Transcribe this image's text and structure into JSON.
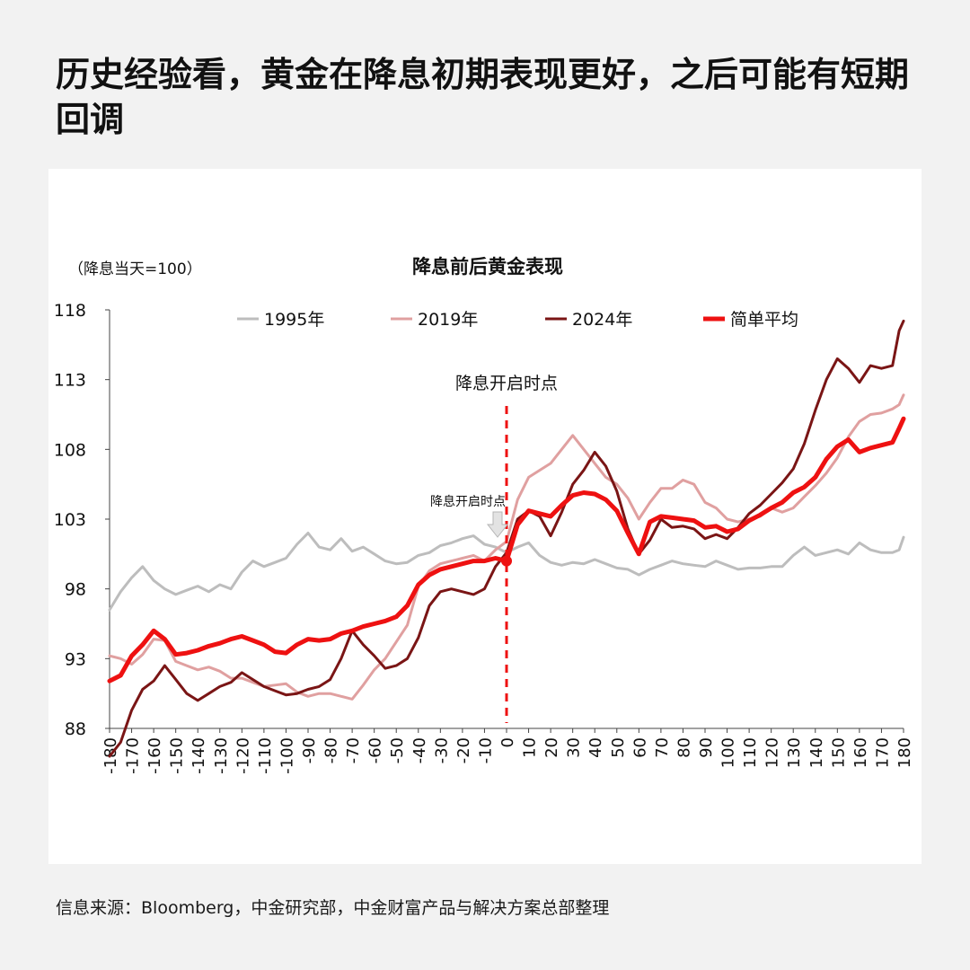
{
  "page": {
    "headline": "历史经验看，黄金在降息初期表现更好，之后可能有短期回调",
    "source": "信息来源：Bloomberg，中金研究部，中金财富产品与解决方案总部整理"
  },
  "chart_data": {
    "type": "line",
    "title": "降息前后黄金表现",
    "unit_note": "（降息当天=100）",
    "xlabel": "",
    "ylabel": "",
    "xlim": [
      -180,
      180
    ],
    "ylim": [
      88,
      118
    ],
    "x_ticks": [
      -180,
      -170,
      -160,
      -150,
      -140,
      -130,
      -120,
      -110,
      -100,
      -90,
      -80,
      -70,
      -60,
      -50,
      -40,
      -30,
      -20,
      -10,
      0,
      10,
      20,
      30,
      40,
      50,
      60,
      70,
      80,
      90,
      100,
      110,
      120,
      130,
      140,
      150,
      160,
      170,
      180
    ],
    "y_ticks": [
      88,
      93,
      98,
      103,
      108,
      113,
      118
    ],
    "grid": false,
    "legend_position": "top",
    "annotations": {
      "cut_line_label": "降息开启时点",
      "cut_arrow_label": "降息开启时点",
      "cut_x": 0,
      "cut_y": 100
    },
    "series": [
      {
        "name": "1995年",
        "color": "#bdbdbd",
        "width": 3,
        "x": [
          -180,
          -175,
          -170,
          -165,
          -160,
          -155,
          -150,
          -145,
          -140,
          -135,
          -130,
          -125,
          -120,
          -115,
          -110,
          -105,
          -100,
          -95,
          -90,
          -85,
          -80,
          -75,
          -70,
          -65,
          -60,
          -55,
          -50,
          -45,
          -40,
          -35,
          -30,
          -25,
          -20,
          -15,
          -10,
          -5,
          0,
          5,
          10,
          15,
          20,
          25,
          30,
          35,
          40,
          45,
          50,
          55,
          60,
          65,
          70,
          75,
          80,
          85,
          90,
          95,
          100,
          105,
          110,
          115,
          120,
          125,
          130,
          135,
          140,
          145,
          150,
          155,
          160,
          165,
          170,
          175,
          178,
          180
        ],
        "y": [
          96.5,
          97.8,
          98.8,
          99.6,
          98.6,
          98.0,
          97.6,
          97.9,
          98.2,
          97.8,
          98.3,
          98.0,
          99.2,
          100.0,
          99.6,
          99.9,
          100.2,
          101.2,
          102.0,
          101.0,
          100.8,
          101.6,
          100.7,
          101.0,
          100.5,
          100.0,
          99.8,
          99.9,
          100.4,
          100.6,
          101.1,
          101.3,
          101.6,
          101.8,
          101.2,
          101.0,
          100.6,
          101.0,
          101.3,
          100.4,
          99.9,
          99.7,
          99.9,
          99.8,
          100.1,
          99.8,
          99.5,
          99.4,
          99.0,
          99.4,
          99.7,
          100.0,
          99.8,
          99.7,
          99.6,
          100.0,
          99.7,
          99.4,
          99.5,
          99.5,
          99.6,
          99.6,
          100.4,
          101.0,
          100.4,
          100.6,
          100.8,
          100.5,
          101.3,
          100.8,
          100.6,
          100.6,
          100.8,
          101.7
        ]
      },
      {
        "name": "2019年",
        "color": "#e0a0a0",
        "width": 3,
        "x": [
          -180,
          -175,
          -170,
          -165,
          -160,
          -155,
          -150,
          -145,
          -140,
          -135,
          -130,
          -125,
          -120,
          -115,
          -110,
          -105,
          -100,
          -95,
          -90,
          -85,
          -80,
          -75,
          -70,
          -65,
          -60,
          -55,
          -50,
          -45,
          -40,
          -35,
          -30,
          -25,
          -20,
          -15,
          -10,
          -5,
          0,
          5,
          10,
          15,
          20,
          25,
          30,
          35,
          40,
          45,
          50,
          55,
          60,
          65,
          70,
          75,
          80,
          85,
          90,
          95,
          100,
          105,
          110,
          115,
          120,
          125,
          130,
          135,
          140,
          145,
          150,
          155,
          160,
          165,
          170,
          175,
          178,
          180
        ],
        "y": [
          93.2,
          93.0,
          92.6,
          93.3,
          94.4,
          94.3,
          92.8,
          92.5,
          92.2,
          92.4,
          92.1,
          91.6,
          91.6,
          91.3,
          91.0,
          91.1,
          91.2,
          90.6,
          90.3,
          90.5,
          90.5,
          90.3,
          90.1,
          91.1,
          92.2,
          93.0,
          94.2,
          95.4,
          98.2,
          99.3,
          99.8,
          100.0,
          100.2,
          100.4,
          100.0,
          100.8,
          101.4,
          104.4,
          106.0,
          106.5,
          107.0,
          108.0,
          109.0,
          108.0,
          107.0,
          106.0,
          105.5,
          104.5,
          103.0,
          104.2,
          105.2,
          105.2,
          105.8,
          105.5,
          104.2,
          103.8,
          103.0,
          102.8,
          103.0,
          103.2,
          103.8,
          103.5,
          103.8,
          104.6,
          105.4,
          106.3,
          107.4,
          108.9,
          110.0,
          110.5,
          110.6,
          110.9,
          111.2,
          111.9
        ]
      },
      {
        "name": "2024年",
        "color": "#7a1515",
        "width": 3,
        "x": [
          -180,
          -175,
          -170,
          -165,
          -160,
          -155,
          -150,
          -145,
          -140,
          -135,
          -130,
          -125,
          -120,
          -115,
          -110,
          -105,
          -100,
          -95,
          -90,
          -85,
          -80,
          -75,
          -70,
          -65,
          -60,
          -55,
          -50,
          -45,
          -40,
          -35,
          -30,
          -25,
          -20,
          -15,
          -10,
          -5,
          0,
          5,
          10,
          15,
          20,
          25,
          30,
          35,
          40,
          45,
          50,
          55,
          60,
          65,
          70,
          75,
          80,
          85,
          90,
          95,
          100,
          105,
          110,
          115,
          120,
          125,
          130,
          135,
          140,
          145,
          150,
          155,
          160,
          165,
          170,
          175,
          178,
          180
        ],
        "y": [
          86.0,
          87.0,
          89.3,
          90.8,
          91.4,
          92.5,
          91.5,
          90.5,
          90.0,
          90.5,
          91.0,
          91.3,
          92.0,
          91.5,
          91.0,
          90.7,
          90.4,
          90.5,
          90.8,
          91.0,
          91.5,
          93.0,
          95.0,
          94.0,
          93.2,
          92.3,
          92.5,
          93.0,
          94.5,
          96.8,
          97.8,
          98.0,
          97.8,
          97.6,
          98.0,
          99.6,
          100.6,
          103.0,
          103.6,
          103.2,
          101.8,
          103.5,
          105.5,
          106.5,
          107.8,
          106.8,
          105.0,
          102.3,
          100.5,
          101.5,
          103.0,
          102.4,
          102.5,
          102.3,
          101.6,
          101.9,
          101.6,
          102.4,
          103.4,
          104.0,
          104.8,
          105.6,
          106.6,
          108.4,
          110.8,
          113.0,
          114.5,
          113.8,
          112.8,
          114.0,
          113.8,
          114.0,
          116.5,
          117.2
        ]
      },
      {
        "name": "简单平均",
        "color": "#ee1111",
        "width": 5,
        "x": [
          -180,
          -175,
          -170,
          -165,
          -160,
          -155,
          -150,
          -145,
          -140,
          -135,
          -130,
          -125,
          -120,
          -115,
          -110,
          -105,
          -100,
          -95,
          -90,
          -85,
          -80,
          -75,
          -70,
          -65,
          -60,
          -55,
          -50,
          -45,
          -40,
          -35,
          -30,
          -25,
          -20,
          -15,
          -10,
          -5,
          0,
          5,
          10,
          15,
          20,
          25,
          30,
          35,
          40,
          45,
          50,
          55,
          60,
          65,
          70,
          75,
          80,
          85,
          90,
          95,
          100,
          105,
          110,
          115,
          120,
          125,
          130,
          135,
          140,
          145,
          150,
          155,
          160,
          165,
          170,
          175,
          178,
          180
        ],
        "y": [
          91.4,
          91.8,
          93.2,
          94.0,
          95.0,
          94.4,
          93.3,
          93.4,
          93.6,
          93.9,
          94.1,
          94.4,
          94.6,
          94.3,
          94.0,
          93.5,
          93.4,
          94.0,
          94.4,
          94.3,
          94.4,
          94.8,
          95.0,
          95.3,
          95.5,
          95.7,
          96.0,
          96.8,
          98.3,
          99.0,
          99.4,
          99.6,
          99.8,
          100.0,
          100.0,
          100.2,
          100.0,
          102.6,
          103.6,
          103.4,
          103.2,
          104.0,
          104.7,
          104.9,
          104.8,
          104.4,
          103.6,
          102.0,
          100.5,
          102.8,
          103.2,
          103.1,
          103.0,
          102.9,
          102.4,
          102.5,
          102.1,
          102.3,
          102.9,
          103.3,
          103.8,
          104.2,
          104.9,
          105.3,
          106.0,
          107.3,
          108.2,
          108.7,
          107.8,
          108.1,
          108.3,
          108.5,
          109.5,
          110.2
        ]
      }
    ]
  }
}
